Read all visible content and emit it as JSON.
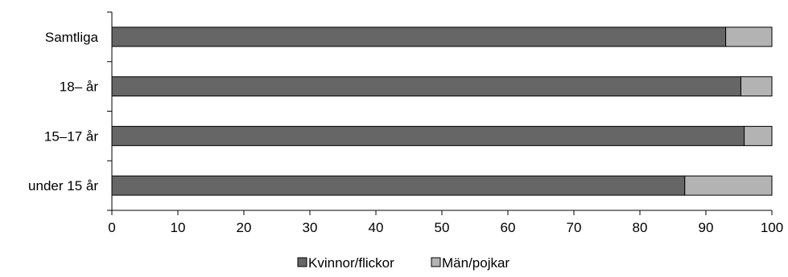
{
  "chart_data": {
    "type": "bar",
    "orientation": "horizontal",
    "stacked": true,
    "categories": [
      "Samtliga",
      "18– år",
      "15–17 år",
      "under 15 år"
    ],
    "series": [
      {
        "name": "Kvinnor/flickor",
        "values": [
          93,
          95.3,
          95.8,
          86.8
        ],
        "color": "#666666"
      },
      {
        "name": "Män/pojkar",
        "values": [
          7,
          4.7,
          4.2,
          13.2
        ],
        "color": "#b3b3b3"
      }
    ],
    "xlim": [
      0,
      100
    ],
    "xticks": [
      "0",
      "10",
      "20",
      "30",
      "40",
      "50",
      "60",
      "70",
      "80",
      "90",
      "100"
    ],
    "grid": false,
    "legend_position": "bottom"
  }
}
